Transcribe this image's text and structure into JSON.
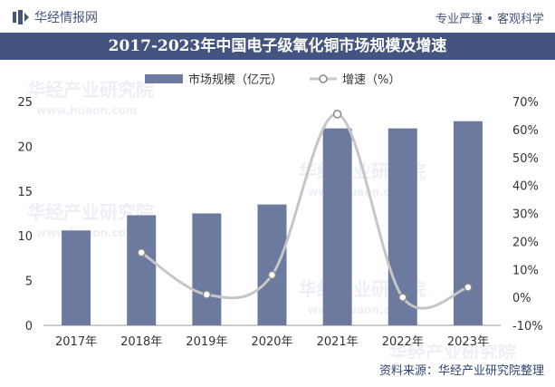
{
  "header": {
    "brand": "华经情报网",
    "slogan": "专业严谨 • 客观科学"
  },
  "footer": {
    "source": "资料来源：华经产业研究院整理"
  },
  "watermark": {
    "cn": "华经产业研究院",
    "en": "www.huaon.com"
  },
  "colors": {
    "title_bg": "#435480",
    "bar": "#6b7a9e",
    "line": "#c6c6c6",
    "marker_fill": "#ffffff"
  },
  "chart_data": {
    "type": "bar",
    "title": "2017-2023年中国电子级氧化铜市场规模及增速",
    "categories": [
      "2017年",
      "2018年",
      "2019年",
      "2020年",
      "2021年",
      "2022年",
      "2023年"
    ],
    "series": [
      {
        "name": "市场规模（亿元）",
        "type": "bar",
        "axis": "left",
        "values": [
          10.6,
          12.3,
          12.5,
          13.5,
          22.0,
          22.0,
          22.8
        ]
      },
      {
        "name": "增速（%）",
        "type": "line",
        "axis": "right",
        "values": [
          null,
          16.0,
          1.0,
          8.0,
          65.5,
          0.0,
          3.6
        ]
      }
    ],
    "ylim_left": [
      0,
      25
    ],
    "yticks_left": [
      0,
      5,
      10,
      15,
      20,
      25
    ],
    "ylim_right": [
      -10,
      70
    ],
    "yticks_right": [
      "-10%",
      "0%",
      "10%",
      "20%",
      "30%",
      "40%",
      "50%",
      "60%",
      "70%"
    ],
    "legend": [
      "市场规模（亿元）",
      "增速（%）"
    ]
  }
}
